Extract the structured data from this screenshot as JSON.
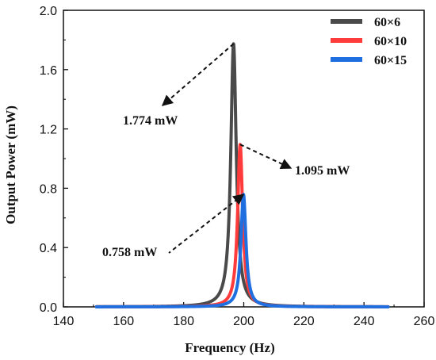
{
  "chart_data": {
    "type": "line",
    "xlabel": "Frequency (Hz)",
    "ylabel": "Output Power  (mW)",
    "xlim": [
      140,
      260
    ],
    "ylim": [
      0.0,
      2.0
    ],
    "x_ticks": [
      "140",
      "160",
      "180",
      "200",
      "220",
      "240",
      "260"
    ],
    "y_ticks": [
      "0.0",
      "0.4",
      "0.8",
      "1.2",
      "1.6",
      "2.0"
    ],
    "grid": false,
    "legend_position": "top-right",
    "series": [
      {
        "name": "60×6",
        "color": "#4a4a4a",
        "peak_x": 196.6,
        "peak_y": 1.774,
        "halfwidth": 1.1,
        "x_range": [
          151,
          248
        ]
      },
      {
        "name": "60×10",
        "color": "#ff3b3b",
        "peak_x": 198.8,
        "peak_y": 1.095,
        "halfwidth": 1.0,
        "x_range": [
          151,
          248
        ]
      },
      {
        "name": "60×15",
        "color": "#1f6fe0",
        "peak_x": 199.9,
        "peak_y": 0.758,
        "halfwidth": 1.0,
        "x_range": [
          151,
          248
        ]
      }
    ],
    "annotations": [
      {
        "text": "1.774 mW",
        "points_to": [
          196.6,
          1.774
        ]
      },
      {
        "text": "1.095 mW",
        "points_to": [
          198.8,
          1.095
        ]
      },
      {
        "text": "0.758 mW",
        "points_to": [
          199.9,
          0.758
        ]
      }
    ]
  }
}
